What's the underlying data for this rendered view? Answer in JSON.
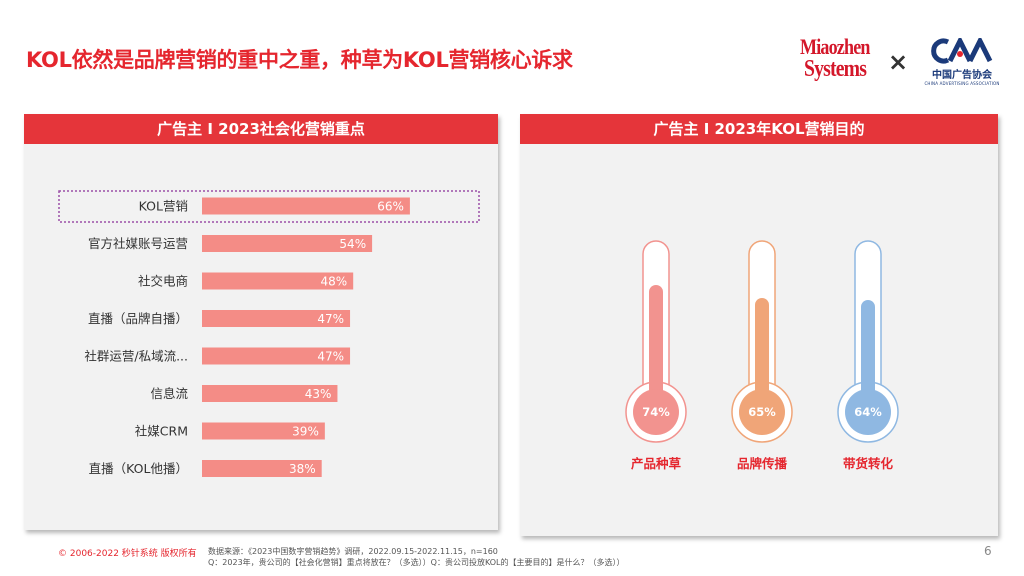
{
  "header": {
    "title": "KOL依然是品牌营销的重中之重，种草为KOL营销核心诉求",
    "logo_miaozhen_line1": "Miaozhen",
    "logo_miaozhen_line2": "Systems",
    "times_sign": "×",
    "logo_caa_cn": "中国广告协会",
    "logo_caa_en": "CHINA ADVERTISING ASSOCIATION"
  },
  "chart_data": [
    {
      "type": "bar",
      "title": "广告主 I 2023社会化营销重点",
      "categories": [
        "KOL营销",
        "官方社媒账号运营",
        "社交电商",
        "直播（品牌自播）",
        "社群运营/私域流...",
        "信息流",
        "社媒CRM",
        "直播（KOL他播）"
      ],
      "values": [
        66,
        54,
        48,
        47,
        47,
        43,
        39,
        38
      ],
      "value_labels": [
        "66%",
        "54%",
        "48%",
        "47%",
        "47%",
        "43%",
        "39%",
        "38%"
      ],
      "xlim": [
        0,
        100
      ],
      "highlight_index": 0,
      "bar_color": "#f48c86",
      "highlight_border": "#9b4fa8"
    },
    {
      "type": "bar",
      "title": "广告主 I 2023年KOL营销目的",
      "categories": [
        "产品种草",
        "品牌传播",
        "带货转化"
      ],
      "values": [
        74,
        65,
        64
      ],
      "value_labels": [
        "74%",
        "65%",
        "64%"
      ],
      "colors": [
        "#f2938f",
        "#f0a578",
        "#8fb8e2"
      ],
      "label_color": "#e5262e"
    }
  ],
  "footer": {
    "copyright": "© 2006-2022 秒针系统 版权所有",
    "source_line1": "数据来源：《2023中国数字营销趋势》调研，2022.09.15-2022.11.15，n=160",
    "source_line2": "Q：2023年，贵公司的【社会化营销】重点将放在？（多选））Q：贵公司投放KOL的【主要目的】是什么？（多选））",
    "page_number": "6"
  }
}
